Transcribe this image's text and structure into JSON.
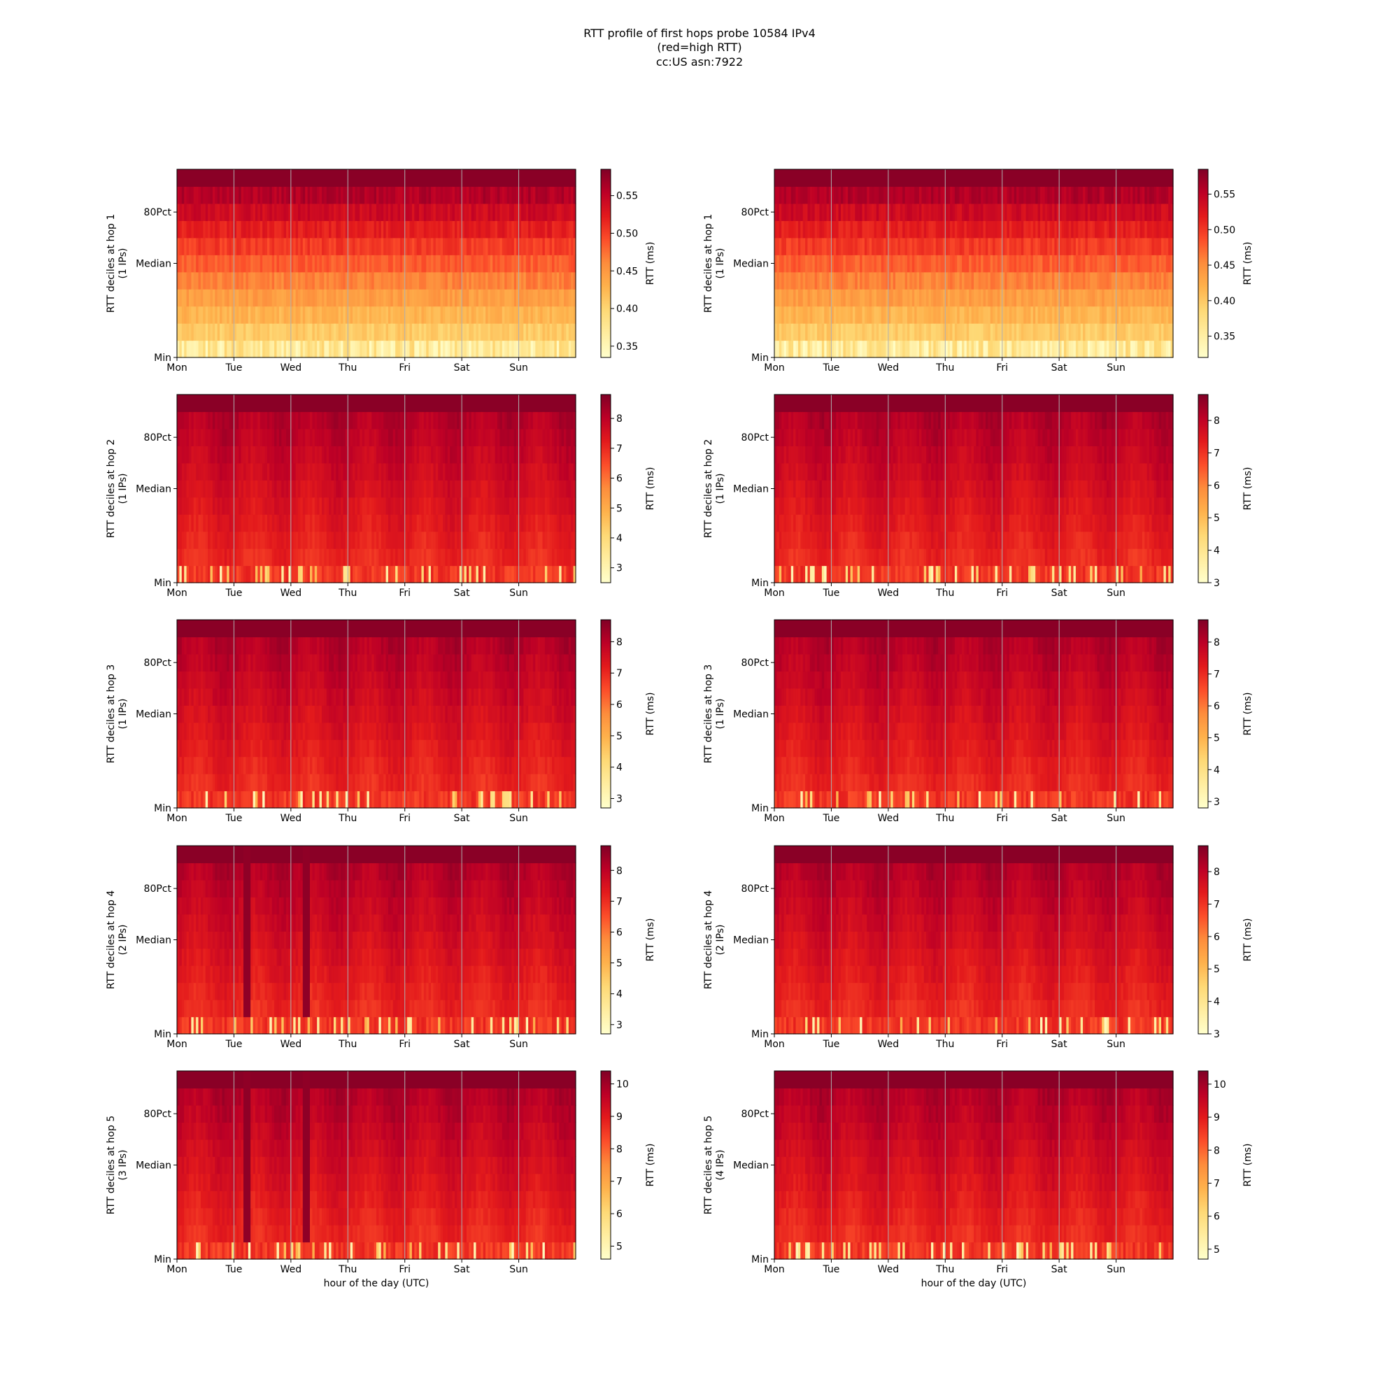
{
  "title_lines": [
    "RTT profile of first hops probe 10584 IPv4",
    "(red=high RTT)",
    "cc:US asn:7922"
  ],
  "chart_data": {
    "type": "heatmap",
    "colormap": "YlOrRd",
    "x_tick_labels": [
      "Mon",
      "Tue",
      "Wed",
      "Thu",
      "Fri",
      "Sat",
      "Sun"
    ],
    "x_range_days": [
      0,
      7
    ],
    "y_tick_labels": [
      "Min",
      "Median",
      "80Pct"
    ],
    "deciles": 11,
    "grid": "vertical lines at day boundaries",
    "colorbar_label": "RTT (ms)",
    "xlabel": "hour of the day (UTC)",
    "panels": [
      {
        "ylabel": "RTT deciles at hop 1",
        "ips": "(1 IPs)",
        "cbar_ticks": [
          "0.35",
          "0.40",
          "0.45",
          "0.50",
          "0.55"
        ],
        "cbar_range": [
          0.335,
          0.585
        ],
        "show_xlabel": false,
        "seed": 11,
        "profile": "hop1",
        "dips": []
      },
      {
        "ylabel": "RTT deciles at hop 1",
        "ips": "(1 IPs)",
        "cbar_ticks": [
          "0.35",
          "0.40",
          "0.45",
          "0.50",
          "0.55"
        ],
        "cbar_range": [
          0.32,
          0.585
        ],
        "show_xlabel": false,
        "seed": 12,
        "profile": "hop1",
        "dips": []
      },
      {
        "ylabel": "RTT deciles at hop 2",
        "ips": "(1 IPs)",
        "cbar_ticks": [
          "3",
          "4",
          "5",
          "6",
          "7",
          "8"
        ],
        "cbar_range": [
          2.5,
          8.8
        ],
        "show_xlabel": false,
        "seed": 21,
        "profile": "hopN",
        "dips": []
      },
      {
        "ylabel": "RTT deciles at hop 2",
        "ips": "(1 IPs)",
        "cbar_ticks": [
          "3",
          "4",
          "5",
          "6",
          "7",
          "8"
        ],
        "cbar_range": [
          3.0,
          8.8
        ],
        "show_xlabel": false,
        "seed": 22,
        "profile": "hopN",
        "dips": []
      },
      {
        "ylabel": "RTT deciles at hop 3",
        "ips": "(1 IPs)",
        "cbar_ticks": [
          "3",
          "4",
          "5",
          "6",
          "7",
          "8"
        ],
        "cbar_range": [
          2.7,
          8.7
        ],
        "show_xlabel": false,
        "seed": 31,
        "profile": "hopN",
        "dips": []
      },
      {
        "ylabel": "RTT deciles at hop 3",
        "ips": "(1 IPs)",
        "cbar_ticks": [
          "3",
          "4",
          "5",
          "6",
          "7",
          "8"
        ],
        "cbar_range": [
          2.8,
          8.7
        ],
        "show_xlabel": false,
        "seed": 32,
        "profile": "hopN",
        "dips": []
      },
      {
        "ylabel": "RTT deciles at hop 4",
        "ips": "(2 IPs)",
        "cbar_ticks": [
          "3",
          "4",
          "5",
          "6",
          "7",
          "8"
        ],
        "cbar_range": [
          2.7,
          8.8
        ],
        "show_xlabel": false,
        "seed": 41,
        "profile": "hopN",
        "dips": [
          1.22,
          2.25
        ]
      },
      {
        "ylabel": "RTT deciles at hop 4",
        "ips": "(2 IPs)",
        "cbar_ticks": [
          "3",
          "4",
          "5",
          "6",
          "7",
          "8"
        ],
        "cbar_range": [
          3.0,
          8.8
        ],
        "show_xlabel": false,
        "seed": 42,
        "profile": "hopN",
        "dips": []
      },
      {
        "ylabel": "RTT deciles at hop 5",
        "ips": "(3 IPs)",
        "cbar_ticks": [
          "5",
          "6",
          "7",
          "8",
          "9",
          "10"
        ],
        "cbar_range": [
          4.6,
          10.4
        ],
        "show_xlabel": true,
        "seed": 51,
        "profile": "hopN",
        "dips": [
          1.22,
          2.25
        ]
      },
      {
        "ylabel": "RTT deciles at hop 5",
        "ips": "(4 IPs)",
        "cbar_ticks": [
          "5",
          "6",
          "7",
          "8",
          "9",
          "10"
        ],
        "cbar_range": [
          4.7,
          10.4
        ],
        "show_xlabel": true,
        "seed": 52,
        "profile": "hopN",
        "dips": []
      }
    ]
  }
}
